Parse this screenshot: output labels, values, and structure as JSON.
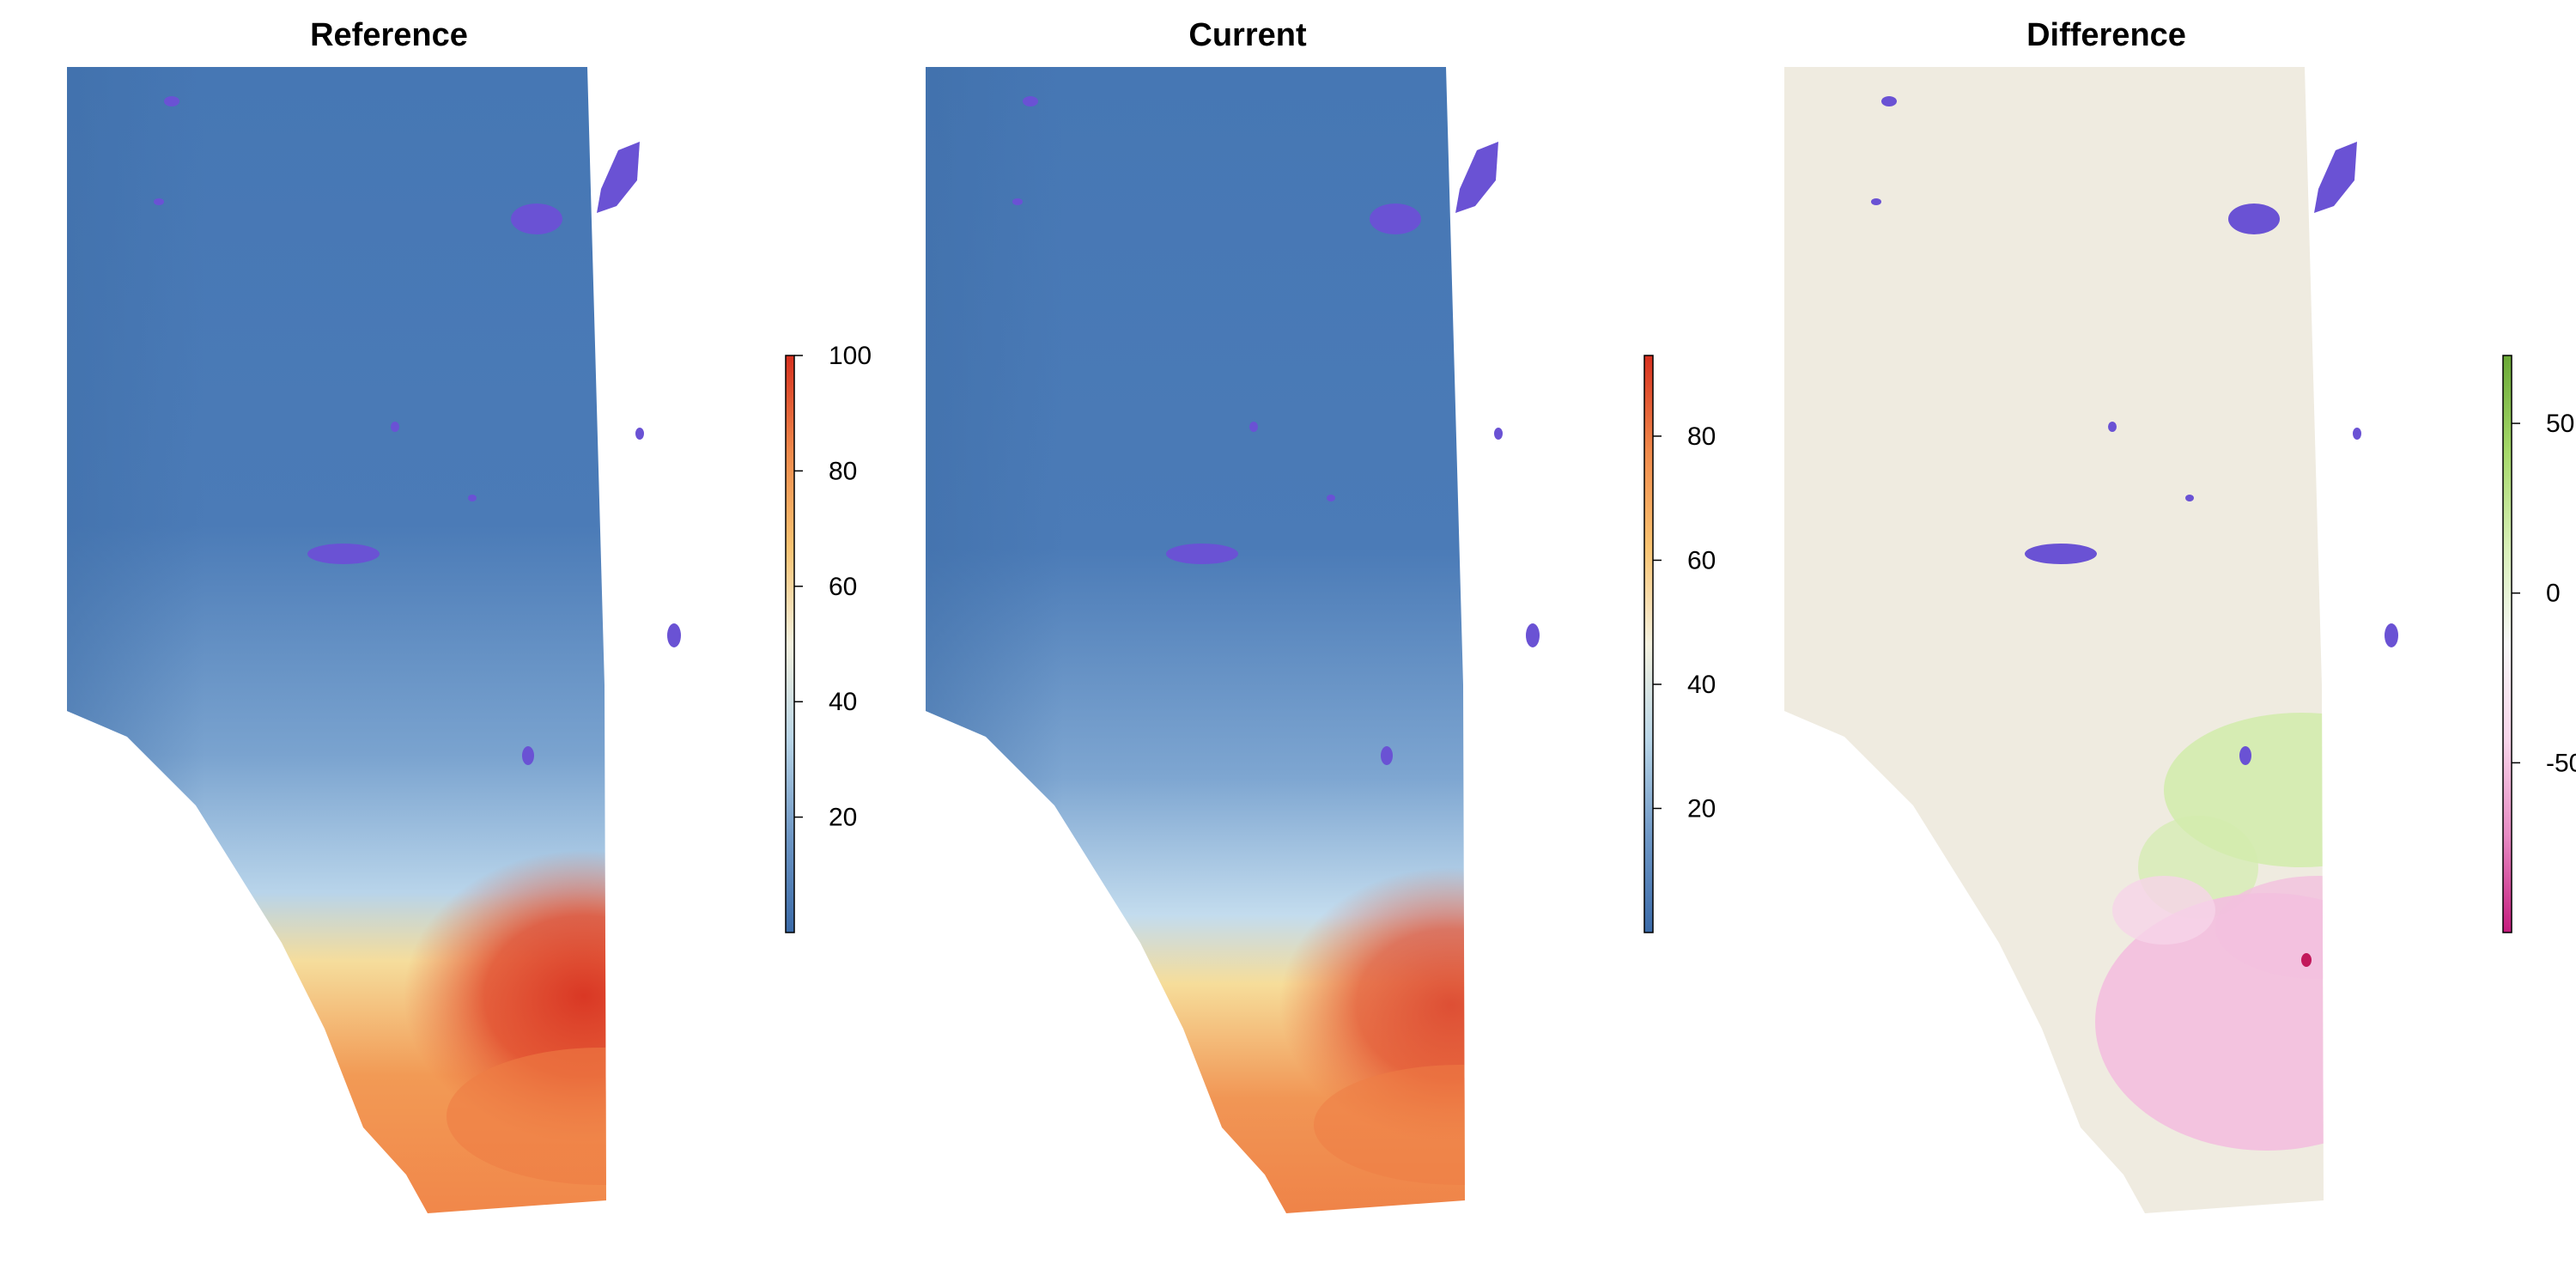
{
  "panels": [
    {
      "title": "Reference",
      "legend": {
        "ticks": [
          20,
          40,
          60,
          80,
          100
        ],
        "range": [
          0,
          100
        ],
        "colors": [
          "#3a6aa8",
          "#6f98c6",
          "#b9d6e8",
          "#f4f1df",
          "#f9c472",
          "#f08a4b",
          "#d7301f"
        ]
      }
    },
    {
      "title": "Current",
      "legend": {
        "ticks": [
          20,
          40,
          60,
          80
        ],
        "range": [
          0,
          93
        ],
        "colors": [
          "#3a6aa8",
          "#6f98c6",
          "#b9d6e8",
          "#f4f1df",
          "#f9c472",
          "#f08a4b",
          "#d7301f"
        ]
      }
    },
    {
      "title": "Difference",
      "legend": {
        "ticks": [
          50,
          0,
          -50
        ],
        "range": [
          -100,
          70
        ],
        "colors": [
          "#c51b7d",
          "#e78ac3",
          "#f8d5ea",
          "#f7f7f7",
          "#d9efb8",
          "#a6d96a",
          "#6aa836"
        ]
      }
    }
  ],
  "map_colors": {
    "cool": "#4a7ab5",
    "transition": "#a9c9e4",
    "warm": "#f39b5a",
    "hot": "#dd3a28",
    "lake": "#6a52d4",
    "neutral": "#efebe0",
    "diff_positive": "#c9ea9c",
    "diff_negative": "#f2bedd"
  }
}
